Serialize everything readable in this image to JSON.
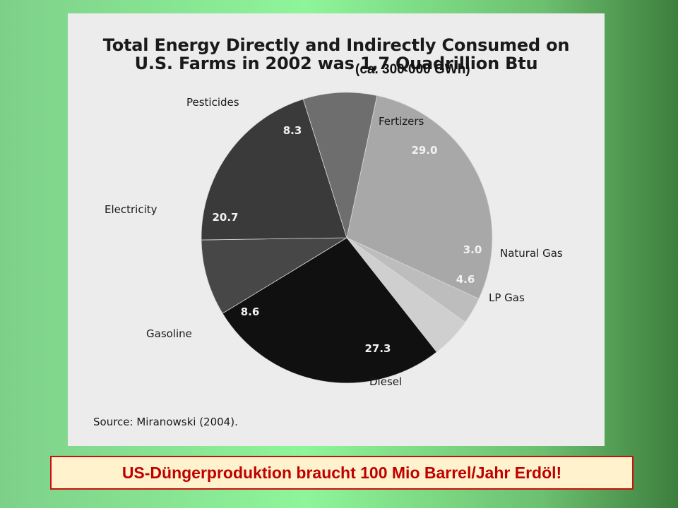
{
  "slide": {
    "banner": "US-Düngerproduktion braucht 100 Mio Barrel/Jahr Erdöl!"
  },
  "chart_data": {
    "type": "pie",
    "title_line1": "Total Energy Directly and Indirectly Consumed on",
    "title_line2": "U.S. Farms in 2002 was 1,7 Quadrillion Btu",
    "subtitle": "(ca. 300 000 GWh)",
    "source": "Source: Miranowski (2004).",
    "legend": "none (labels placed beside slices)",
    "slices": [
      {
        "label": "Fertizers",
        "value": 29.0,
        "value_label": "29.0",
        "color": "#a8a8a8"
      },
      {
        "label": "Natural Gas",
        "value": 3.0,
        "value_label": "3.0",
        "color": "#bdbdbd"
      },
      {
        "label": "LP Gas",
        "value": 4.6,
        "value_label": "4.6",
        "color": "#cfcfcf"
      },
      {
        "label": "Diesel",
        "value": 27.3,
        "value_label": "27.3",
        "color": "#101010"
      },
      {
        "label": "Gasoline",
        "value": 8.6,
        "value_label": "8.6",
        "color": "#474747"
      },
      {
        "label": "Electricity",
        "value": 20.7,
        "value_label": "20.7",
        "color": "#3a3a3a"
      },
      {
        "label": "Pesticides",
        "value": 8.3,
        "value_label": "8.3",
        "color": "#6e6e6e"
      }
    ]
  }
}
